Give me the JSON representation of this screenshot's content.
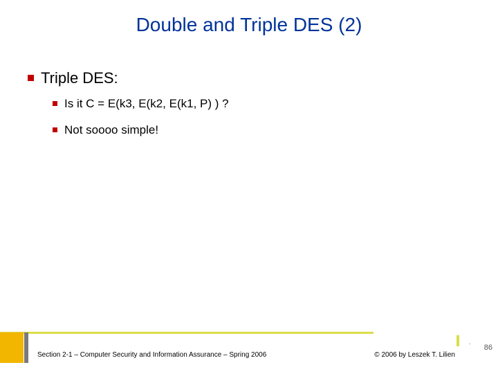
{
  "colors": {
    "title": "#003399",
    "heading": "#000000",
    "bullet": "#c00000",
    "body": "#000000",
    "accent_line": "#dcdc4a",
    "accent_block": "#f2b600",
    "accent_shadow": "#7a7a7a"
  },
  "title": "Double and Triple DES (2)",
  "heading": "Triple DES:",
  "items": [
    "Is it C =  E(k3,  E(k2, E(k1, P) ) ?",
    "Not soooo simple!"
  ],
  "footer": {
    "left": "Section 2-1 – Computer Security and Information Assurance – Spring 2006",
    "right": "© 2006 by Leszek T. Lilien",
    "page": "86",
    "tick": "'"
  }
}
